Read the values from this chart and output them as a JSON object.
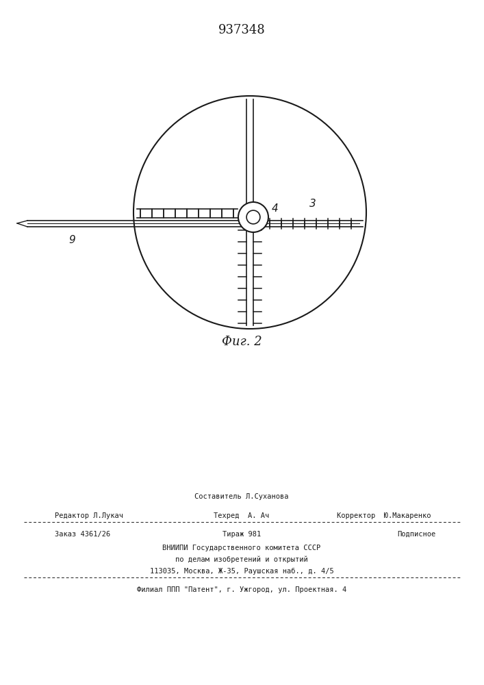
{
  "title": "937348",
  "fig_label": "Фиг. 2",
  "bg_color": "#ffffff",
  "line_color": "#1a1a1a",
  "label_3": "3",
  "label_4": "4",
  "label_9": "9",
  "footer_sestavitel": "Составитель Л.Суханова",
  "footer_redaktor": "Редактор Л.Лукач",
  "footer_tehred": "Техред  А. Ач",
  "footer_korrektor": "Корректор  Ю.Макаренко",
  "footer_zakaz": "Заказ 4361/26",
  "footer_tirazh": "Тираж 981",
  "footer_podpisnoe": "Подписное",
  "footer_vnipi": "ВНИИПИ Государственного комитета СССР",
  "footer_po_delam": "по делам изобретений и открытий",
  "footer_address": "113035, Москва, Ж-35, Раушская наб., д. 4/5",
  "footer_filial": "Филиал ППП \"Патент\", г. Ужгород, ул. Проектная. 4"
}
